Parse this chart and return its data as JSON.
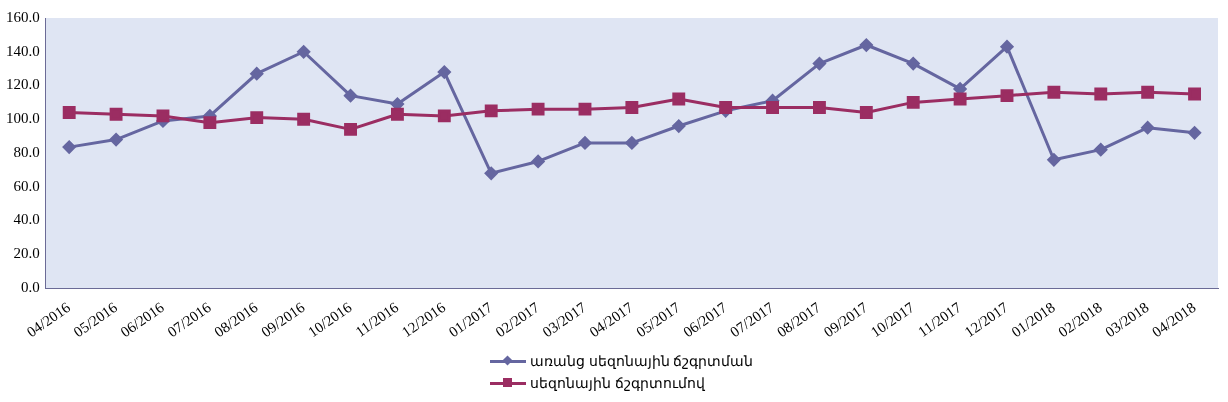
{
  "chart_data": {
    "type": "line",
    "categories": [
      "04/2016",
      "05/2016",
      "06/2016",
      "07/2016",
      "08/2016",
      "09/2016",
      "10/2016",
      "11/2016",
      "12/2016",
      "01/2017",
      "02/2017",
      "03/2017",
      "04/2017",
      "05/2017",
      "06/2017",
      "07/2017",
      "08/2017",
      "09/2017",
      "10/2017",
      "11/2017",
      "12/2017",
      "01/2018",
      "02/2018",
      "03/2018",
      "04/2018"
    ],
    "series": [
      {
        "name": "առանց սեզոնային ճշգրտման",
        "color": "#6566a0",
        "marker": "diamond",
        "values": [
          83.5,
          88,
          99,
          102,
          127,
          140,
          114,
          109,
          128,
          68,
          75,
          86,
          86,
          96,
          105,
          111,
          133,
          144,
          133,
          118,
          143,
          76,
          82,
          95,
          92
        ]
      },
      {
        "name": "սեզոնային ճշգրտումով",
        "color": "#9b2d62",
        "marker": "square",
        "values": [
          104,
          103,
          102,
          98,
          101,
          100,
          94,
          103,
          102,
          105,
          106,
          106,
          107,
          112,
          107,
          107,
          107,
          104,
          110,
          112,
          114,
          116,
          115,
          116,
          115
        ]
      }
    ],
    "ylim": [
      0,
      160
    ],
    "yticks": [
      {
        "value": 0,
        "label": "0.0"
      },
      {
        "value": 20,
        "label": "20.0"
      },
      {
        "value": 40,
        "label": "40.0"
      },
      {
        "value": 60,
        "label": "60.0"
      },
      {
        "value": 80,
        "label": "80.0"
      },
      {
        "value": 100,
        "label": "100.0"
      },
      {
        "value": 120,
        "label": "120.0"
      },
      {
        "value": 140,
        "label": "140.0"
      },
      {
        "value": 160,
        "label": "160.0"
      }
    ],
    "grid": false,
    "legend": "bottom"
  }
}
